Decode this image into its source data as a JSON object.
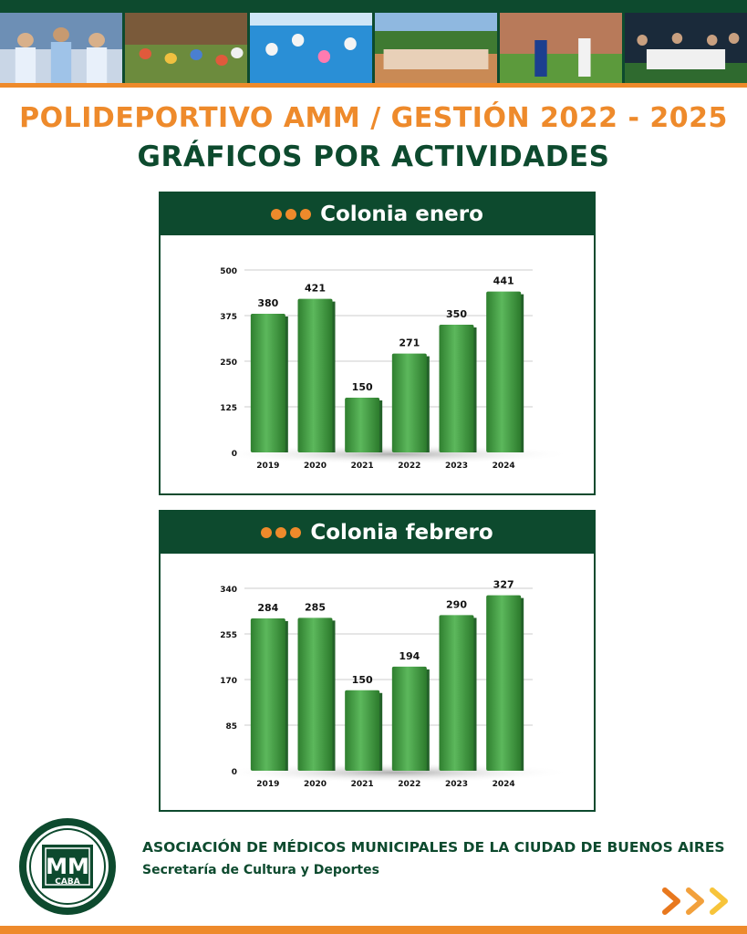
{
  "header": {
    "title": "POLIDEPORTIVO AMM / GESTIÓN 2022 - 2025",
    "subtitle": "GRÁFICOS POR ACTIVIDADES"
  },
  "colors": {
    "brand_green": "#0d4a2e",
    "accent_orange": "#ee8a2b",
    "bar_green": "#3f9b3f"
  },
  "chart_data": [
    {
      "type": "bar",
      "title": "Colonia enero",
      "categories": [
        "2019",
        "2020",
        "2021",
        "2022",
        "2023",
        "2024"
      ],
      "values": [
        380,
        421,
        150,
        271,
        350,
        441
      ],
      "yticks": [
        "0",
        "125",
        "250",
        "375",
        "500"
      ],
      "ylim": [
        0,
        500
      ],
      "grid": true
    },
    {
      "type": "bar",
      "title": "Colonia febrero",
      "categories": [
        "2019",
        "2020",
        "2021",
        "2022",
        "2023",
        "2024"
      ],
      "values": [
        284,
        285,
        150,
        194,
        290,
        327
      ],
      "yticks": [
        "0",
        "85",
        "170",
        "255",
        "340"
      ],
      "ylim": [
        0,
        340
      ],
      "grid": true
    }
  ],
  "footer": {
    "organization": "ASOCIACIÓN DE MÉDICOS MUNICIPALES DE LA CIUDAD DE BUENOS AIRES",
    "department": "Secretaría de Cultura y Deportes",
    "logo_text": "MM",
    "logo_subtext": "CABA"
  }
}
